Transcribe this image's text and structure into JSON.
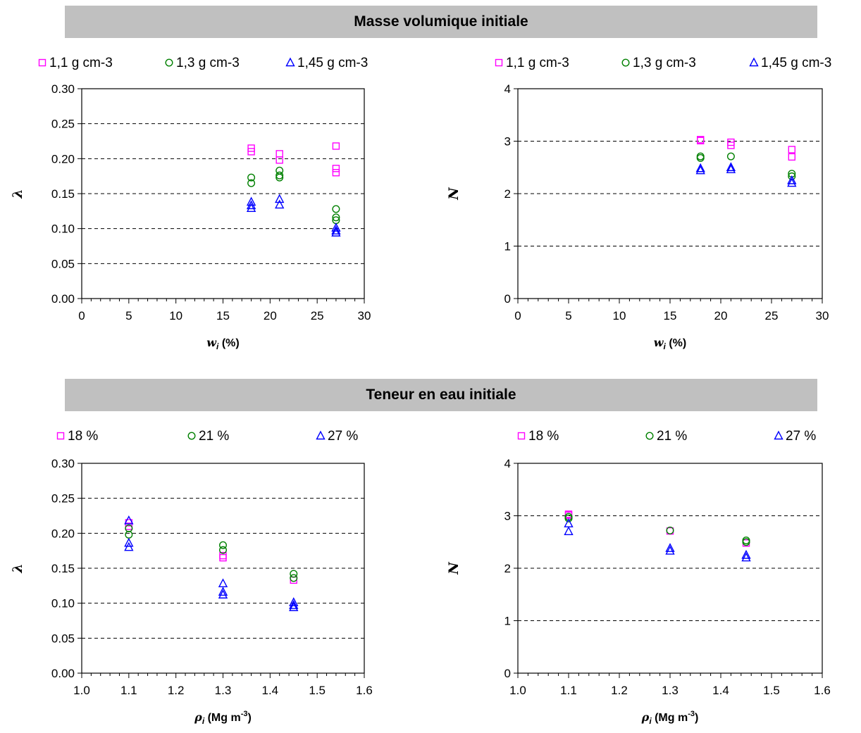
{
  "sections": {
    "top_title": "Masse volumique initiale",
    "bottom_title": "Teneur en eau initiale"
  },
  "colors": {
    "series1": "#ff00ff",
    "series2": "#008000",
    "series3": "#0000ff"
  },
  "chart_data": [
    {
      "type": "scatter",
      "panel": "top-left",
      "xlabel": "w i (%)",
      "xlabel_symbol": "w",
      "xlabel_sub": "i",
      "xlabel_unit": "(%)",
      "ylabel": "λ",
      "xlim": [
        0,
        30
      ],
      "ylim": [
        0,
        0.3
      ],
      "x_ticks": [
        "0",
        "5",
        "10",
        "15",
        "20",
        "25",
        "30"
      ],
      "y_ticks": [
        "0.00",
        "0.05",
        "0.10",
        "0.15",
        "0.20",
        "0.25",
        "0.30"
      ],
      "grid": "dashed horizontal",
      "legend": "top",
      "series": [
        {
          "name": "1,1 g cm-3",
          "marker": "square",
          "color": "#ff00ff",
          "points": [
            [
              18,
              0.215
            ],
            [
              18,
              0.21
            ],
            [
              21,
              0.207
            ],
            [
              21,
              0.198
            ],
            [
              27,
              0.218
            ],
            [
              27,
              0.186
            ],
            [
              27,
              0.18
            ]
          ]
        },
        {
          "name": "1,3 g cm-3",
          "marker": "circle",
          "color": "#008000",
          "points": [
            [
              18,
              0.173
            ],
            [
              18,
              0.165
            ],
            [
              21,
              0.183
            ],
            [
              21,
              0.176
            ],
            [
              21,
              0.173
            ],
            [
              27,
              0.128
            ],
            [
              27,
              0.116
            ],
            [
              27,
              0.112
            ]
          ]
        },
        {
          "name": "1,45 g cm-3",
          "marker": "triangle",
          "color": "#0000ff",
          "points": [
            [
              18,
              0.138
            ],
            [
              18,
              0.133
            ],
            [
              18,
              0.129
            ],
            [
              21,
              0.142
            ],
            [
              21,
              0.134
            ],
            [
              27,
              0.101
            ],
            [
              27,
              0.097
            ],
            [
              27,
              0.094
            ]
          ]
        }
      ]
    },
    {
      "type": "scatter",
      "panel": "top-right",
      "xlabel": "w i (%)",
      "xlabel_symbol": "w",
      "xlabel_sub": "i",
      "xlabel_unit": "(%)",
      "ylabel": "N",
      "xlim": [
        0,
        30
      ],
      "ylim": [
        0,
        4
      ],
      "x_ticks": [
        "0",
        "5",
        "10",
        "15",
        "20",
        "25",
        "30"
      ],
      "y_ticks": [
        "0",
        "1",
        "2",
        "3",
        "4"
      ],
      "grid": "dashed horizontal",
      "legend": "top",
      "series": [
        {
          "name": "1,1 g cm-3",
          "marker": "square",
          "color": "#ff00ff",
          "points": [
            [
              18,
              3.03
            ],
            [
              18,
              3.01
            ],
            [
              21,
              2.98
            ],
            [
              21,
              2.92
            ],
            [
              27,
              2.84
            ],
            [
              27,
              2.7
            ]
          ]
        },
        {
          "name": "1,3 g cm-3",
          "marker": "circle",
          "color": "#008000",
          "points": [
            [
              18,
              2.71
            ],
            [
              18,
              2.68
            ],
            [
              21,
              2.71
            ],
            [
              27,
              2.38
            ],
            [
              27,
              2.33
            ]
          ]
        },
        {
          "name": "1,45 g cm-3",
          "marker": "triangle",
          "color": "#0000ff",
          "points": [
            [
              18,
              2.48
            ],
            [
              18,
              2.44
            ],
            [
              21,
              2.5
            ],
            [
              21,
              2.46
            ],
            [
              27,
              2.25
            ],
            [
              27,
              2.2
            ]
          ]
        }
      ]
    },
    {
      "type": "scatter",
      "panel": "bottom-left",
      "xlabel": "ρ i (Mg m-3)",
      "xlabel_symbol": "ρ",
      "xlabel_sub": "i",
      "xlabel_unit": "(Mg m",
      "xlabel_sup": "-3",
      "xlabel_close": ")",
      "ylabel": "λ",
      "xlim": [
        1.0,
        1.6
      ],
      "ylim": [
        0,
        0.3
      ],
      "x_ticks": [
        "1.0",
        "1.1",
        "1.2",
        "1.3",
        "1.4",
        "1.5",
        "1.6"
      ],
      "y_ticks": [
        "0.00",
        "0.05",
        "0.10",
        "0.15",
        "0.20",
        "0.25",
        "0.30"
      ],
      "grid": "dashed horizontal",
      "legend": "top",
      "series": [
        {
          "name": "18 %",
          "marker": "square",
          "color": "#ff00ff",
          "points": [
            [
              1.1,
              0.215
            ],
            [
              1.1,
              0.21
            ],
            [
              1.3,
              0.168
            ],
            [
              1.3,
              0.165
            ],
            [
              1.45,
              0.133
            ]
          ]
        },
        {
          "name": "21 %",
          "marker": "circle",
          "color": "#008000",
          "points": [
            [
              1.1,
              0.207
            ],
            [
              1.1,
              0.198
            ],
            [
              1.3,
              0.183
            ],
            [
              1.3,
              0.176
            ],
            [
              1.45,
              0.142
            ],
            [
              1.45,
              0.136
            ]
          ]
        },
        {
          "name": "27 %",
          "marker": "triangle",
          "color": "#0000ff",
          "points": [
            [
              1.1,
              0.218
            ],
            [
              1.1,
              0.186
            ],
            [
              1.1,
              0.18
            ],
            [
              1.3,
              0.128
            ],
            [
              1.3,
              0.116
            ],
            [
              1.3,
              0.112
            ],
            [
              1.45,
              0.101
            ],
            [
              1.45,
              0.097
            ],
            [
              1.45,
              0.094
            ]
          ]
        }
      ]
    },
    {
      "type": "scatter",
      "panel": "bottom-right",
      "xlabel": "ρ i (Mg m-3)",
      "xlabel_symbol": "ρ",
      "xlabel_sub": "i",
      "xlabel_unit": "(Mg m",
      "xlabel_sup": "-3",
      "xlabel_close": ")",
      "ylabel": "N",
      "xlim": [
        1.0,
        1.6
      ],
      "ylim": [
        0,
        4
      ],
      "x_ticks": [
        "1.0",
        "1.1",
        "1.2",
        "1.3",
        "1.4",
        "1.5",
        "1.6"
      ],
      "y_ticks": [
        "0",
        "1",
        "2",
        "3",
        "4"
      ],
      "grid": "dashed horizontal",
      "legend": "top",
      "series": [
        {
          "name": "18 %",
          "marker": "square",
          "color": "#ff00ff",
          "points": [
            [
              1.1,
              3.03
            ],
            [
              1.1,
              3.01
            ],
            [
              1.3,
              2.71
            ],
            [
              1.45,
              2.48
            ]
          ]
        },
        {
          "name": "21 %",
          "marker": "circle",
          "color": "#008000",
          "points": [
            [
              1.1,
              2.98
            ],
            [
              1.1,
              2.95
            ],
            [
              1.3,
              2.72
            ],
            [
              1.45,
              2.53
            ],
            [
              1.45,
              2.5
            ]
          ]
        },
        {
          "name": "27 %",
          "marker": "triangle",
          "color": "#0000ff",
          "points": [
            [
              1.1,
              2.85
            ],
            [
              1.1,
              2.7
            ],
            [
              1.3,
              2.38
            ],
            [
              1.3,
              2.33
            ],
            [
              1.45,
              2.25
            ],
            [
              1.45,
              2.2
            ]
          ]
        }
      ]
    }
  ]
}
